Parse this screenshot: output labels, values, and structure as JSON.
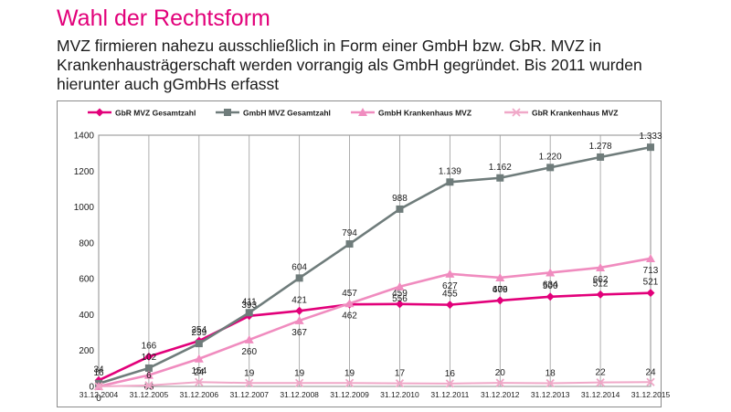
{
  "title": "Wahl der Rechtsform",
  "subtitle": "MVZ firmieren nahezu ausschließlich in Form einer GmbH bzw. GbR. MVZ in Krankenhausträgerschaft werden vorrangig als GmbH gegründet. Bis 2011 wurden hierunter auch gGmbHs erfasst",
  "chart_data": {
    "type": "line",
    "categories": [
      "31.12.2004",
      "31.12.2005",
      "31.12.2006",
      "31.12.2007",
      "31.12.2008",
      "31.12.2009",
      "31.12.2010",
      "31.12.2011",
      "31.12.2012",
      "31.12.2013",
      "31.12.2014",
      "31.12.2015"
    ],
    "ylim": [
      0,
      1400
    ],
    "yticks": [
      0,
      200,
      400,
      600,
      800,
      1000,
      1200,
      1400
    ],
    "legend_position": "top",
    "grid": "vertical",
    "series": [
      {
        "name": "GbR MVZ Gesamtzahl",
        "color": "#e2007a",
        "marker": "diamond",
        "values": [
          34,
          166,
          254,
          393,
          421,
          457,
          459,
          455,
          479,
          500,
          512,
          521
        ],
        "labels": [
          "34",
          "166",
          "254",
          "393",
          "421",
          "457",
          "459",
          "455",
          "479",
          "500",
          "512",
          "521"
        ]
      },
      {
        "name": "GmbH MVZ Gesamtzahl",
        "color": "#6f7c7b",
        "marker": "square",
        "values": [
          16,
          102,
          239,
          411,
          604,
          794,
          988,
          1139,
          1162,
          1220,
          1278,
          1333
        ],
        "labels": [
          "16",
          "102",
          "239",
          "411",
          "604",
          "794",
          "988",
          "1.139",
          "1.162",
          "1.220",
          "1.278",
          "1.333"
        ]
      },
      {
        "name": "GmbH Krankenhaus MVZ",
        "color": "#f08cbf",
        "marker": "triangle",
        "values": [
          0,
          63,
          154,
          260,
          367,
          462,
          556,
          627,
          606,
          634,
          662,
          713
        ],
        "labels": [
          "0",
          "63",
          "154",
          "260",
          "367",
          "462",
          "556",
          "627",
          "606",
          "634",
          "662",
          "713"
        ]
      },
      {
        "name": "GbR Krankenhaus MVZ",
        "color": "#f0a8c8",
        "marker": "x",
        "values": [
          0,
          6,
          24,
          19,
          19,
          19,
          17,
          16,
          20,
          18,
          22,
          24
        ],
        "labels": [
          "",
          "6",
          "24",
          "19",
          "19",
          "19",
          "17",
          "16",
          "20",
          "18",
          "22",
          "24"
        ]
      }
    ]
  }
}
